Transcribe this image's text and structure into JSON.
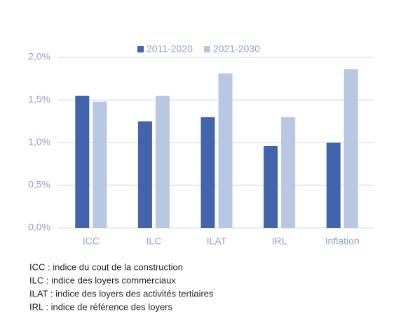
{
  "chart_data": {
    "type": "bar",
    "categories": [
      "ICC",
      "ILC",
      "ILAT",
      "IRL",
      "Inflation"
    ],
    "series": [
      {
        "name": "2011-2020",
        "color": "#4164ab",
        "values": [
          1.55,
          1.25,
          1.3,
          0.96,
          1.0
        ]
      },
      {
        "name": "2021-2030",
        "color": "#b8c7e2",
        "values": [
          1.48,
          1.55,
          1.81,
          1.3,
          1.86
        ]
      }
    ],
    "ylim": [
      0,
      2.0
    ],
    "yticks": [
      {
        "value": 0,
        "label": "0,0%"
      },
      {
        "value": 0.5,
        "label": "0,5%"
      },
      {
        "value": 1.0,
        "label": "1,0%"
      },
      {
        "value": 1.5,
        "label": "1,5%"
      },
      {
        "value": 2.0,
        "label": "2,0%"
      }
    ],
    "grid": true,
    "legend": "top",
    "notes": [
      "ICC : indice du cout de la construction",
      "ILC : indice des loyers commerciaux",
      "ILAT : indice des loyers des activités tertiaires",
      "IRL : indice de référence des loyers"
    ]
  }
}
